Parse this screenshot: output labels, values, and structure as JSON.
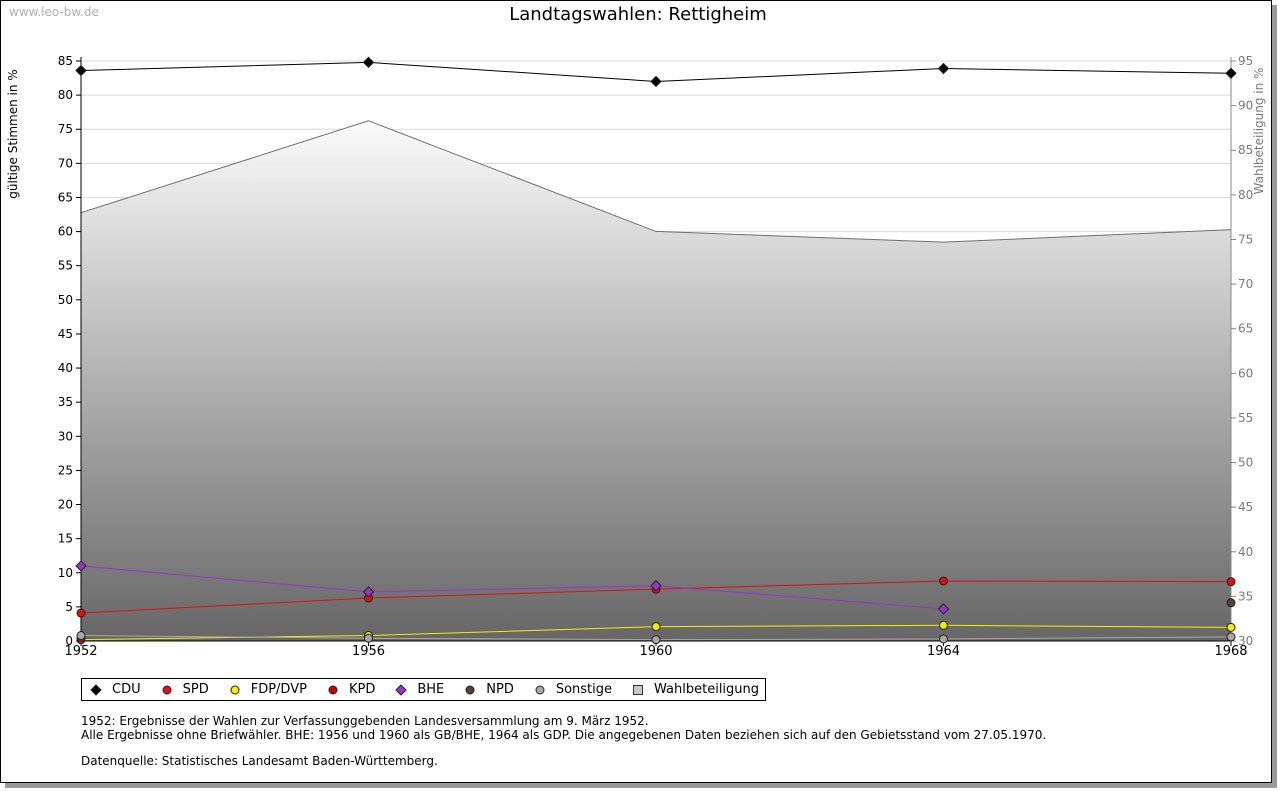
{
  "watermark": "www.leo-bw.de",
  "notes": {
    "line1": "1952: Ergebnisse der Wahlen zur Verfassunggebenden Landesversammlung am 9. März 1952.",
    "line2": "Alle Ergebnisse ohne Briefwähler. BHE: 1956 und 1960 als GB/BHE, 1964 als GDP. Die angegebenen Daten beziehen sich auf den Gebietsstand vom 27.05.1970.",
    "source": "Datenquelle: Statistisches Landesamt Baden-Württemberg."
  },
  "chart_data": {
    "type": "line",
    "title": "Landtagswahlen: Rettigheim",
    "ylabel": "gültige Stimmen in %",
    "y2label": "Wahlbeteiligung in %",
    "x": [
      1952,
      1956,
      1960,
      1964,
      1968
    ],
    "xlim": [
      1952,
      1968
    ],
    "ylim": [
      0,
      85
    ],
    "yticks": [
      0,
      5,
      10,
      15,
      20,
      25,
      30,
      35,
      40,
      45,
      50,
      55,
      60,
      65,
      70,
      75,
      80,
      85
    ],
    "y2lim": [
      30,
      95
    ],
    "y2ticks": [
      30,
      35,
      40,
      45,
      50,
      55,
      60,
      65,
      70,
      75,
      80,
      85,
      90,
      95
    ],
    "grid": true,
    "legend_position": "bottom",
    "series": [
      {
        "name": "CDU",
        "color": "#000000",
        "marker": "diamond",
        "values": [
          83.6,
          84.8,
          82.0,
          83.9,
          83.2
        ]
      },
      {
        "name": "SPD",
        "color": "#dd1111",
        "marker": "circle",
        "values": [
          4.1,
          6.3,
          7.6,
          8.8,
          8.7
        ]
      },
      {
        "name": "FDP/DVP",
        "color": "#f0f000",
        "marker": "circle",
        "values": [
          0.2,
          0.8,
          2.1,
          2.3,
          2.0
        ]
      },
      {
        "name": "KPD",
        "color": "#cc0000",
        "marker": "circle",
        "values": [
          0.4,
          null,
          null,
          null,
          null
        ]
      },
      {
        "name": "BHE",
        "color": "#9933cc",
        "marker": "diamond",
        "values": [
          11.0,
          7.2,
          8.1,
          4.7,
          null
        ]
      },
      {
        "name": "NPD",
        "color": "#5a4030",
        "marker": "circle",
        "values": [
          null,
          null,
          null,
          null,
          5.6
        ]
      },
      {
        "name": "Sonstige",
        "color": "#a8a8a8",
        "marker": "circle",
        "values": [
          0.8,
          0.4,
          0.2,
          0.3,
          0.6
        ]
      }
    ],
    "area_series": {
      "name": "Wahlbeteiligung",
      "axis": "right",
      "values": [
        78.0,
        88.3,
        75.9,
        74.7,
        76.1
      ]
    }
  }
}
